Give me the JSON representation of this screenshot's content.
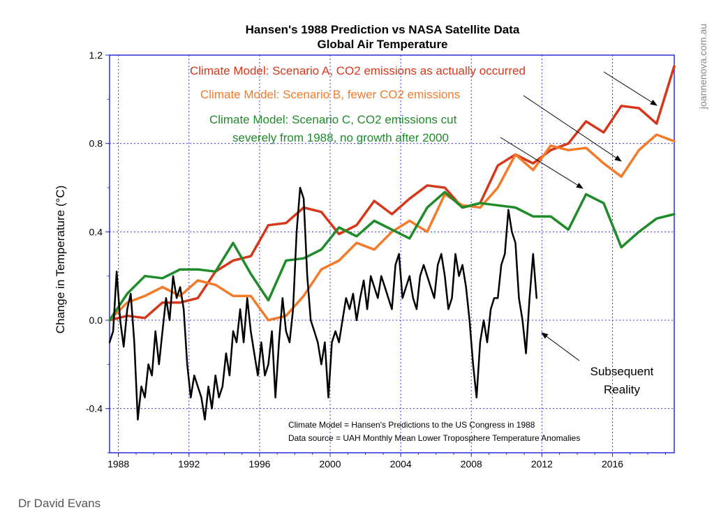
{
  "chart_data": {
    "type": "line",
    "title": "Hansen's 1988 Prediction vs NASA Satellite Data",
    "subtitle": "Global Air Temperature",
    "ylabel": "Change in Temperature (°C)",
    "xlabel": "",
    "xlim": [
      1987.5,
      2019.5
    ],
    "ylim": [
      -0.6,
      1.2
    ],
    "grid": true,
    "x_ticks": [
      1988,
      1992,
      1996,
      2000,
      2004,
      2008,
      2012,
      2016
    ],
    "x_tick_labels": [
      "1988",
      "1992",
      "1996",
      "2000",
      "2004",
      "2008",
      "2012",
      "2016"
    ],
    "y_ticks": [
      -0.4,
      0.0,
      0.4,
      0.8,
      1.2
    ],
    "y_tick_labels": [
      "-0.4",
      "0.0",
      "0.4",
      "0.8",
      "1.2"
    ],
    "series": [
      {
        "name": "Scenario A",
        "color": "#d5371b",
        "x": [
          1987.5,
          1988.5,
          1989.5,
          1990.5,
          1991.5,
          1992.5,
          1993.5,
          1994.5,
          1995.5,
          1996.5,
          1997.5,
          1998.5,
          1999.5,
          2000.5,
          2001.5,
          2002.5,
          2003.5,
          2004.5,
          2005.5,
          2006.5,
          2007.5,
          2008.5,
          2009.5,
          2010.5,
          2011.5,
          2012.5,
          2013.5,
          2014.5,
          2015.5,
          2016.5,
          2017.5,
          2018.5,
          2019.5
        ],
        "values": [
          0.0,
          0.02,
          0.01,
          0.08,
          0.08,
          0.1,
          0.22,
          0.27,
          0.29,
          0.43,
          0.44,
          0.51,
          0.49,
          0.39,
          0.43,
          0.54,
          0.48,
          0.55,
          0.61,
          0.6,
          0.51,
          0.53,
          0.7,
          0.75,
          0.71,
          0.77,
          0.8,
          0.9,
          0.85,
          0.97,
          0.96,
          0.89,
          1.15
        ]
      },
      {
        "name": "Scenario B",
        "color": "#f47a2a",
        "x": [
          1987.5,
          1988.5,
          1989.5,
          1990.5,
          1991.5,
          1992.5,
          1993.5,
          1994.5,
          1995.5,
          1996.5,
          1997.5,
          1998.5,
          1999.5,
          2000.5,
          2001.5,
          2002.5,
          2003.5,
          2004.5,
          2005.5,
          2006.5,
          2007.5,
          2008.5,
          2009.5,
          2010.5,
          2011.5,
          2012.5,
          2013.5,
          2014.5,
          2015.5,
          2016.5,
          2017.5,
          2018.5,
          2019.5
        ],
        "values": [
          0.0,
          0.08,
          0.11,
          0.15,
          0.11,
          0.18,
          0.16,
          0.11,
          0.11,
          0.0,
          0.02,
          0.11,
          0.23,
          0.27,
          0.35,
          0.32,
          0.4,
          0.45,
          0.4,
          0.57,
          0.52,
          0.51,
          0.6,
          0.75,
          0.68,
          0.79,
          0.77,
          0.78,
          0.71,
          0.65,
          0.77,
          0.84,
          0.81
        ]
      },
      {
        "name": "Scenario C",
        "color": "#1f8b2a",
        "x": [
          1987.5,
          1988.5,
          1989.5,
          1990.5,
          1991.5,
          1992.5,
          1993.5,
          1994.5,
          1995.5,
          1996.5,
          1997.5,
          1998.5,
          1999.5,
          2000.5,
          2001.5,
          2002.5,
          2003.5,
          2004.5,
          2005.5,
          2006.5,
          2007.5,
          2008.5,
          2009.5,
          2010.5,
          2011.5,
          2012.5,
          2013.5,
          2014.5,
          2015.5,
          2016.5,
          2017.5,
          2018.5,
          2019.5
        ],
        "values": [
          0.0,
          0.12,
          0.2,
          0.19,
          0.23,
          0.23,
          0.22,
          0.35,
          0.21,
          0.09,
          0.27,
          0.28,
          0.32,
          0.42,
          0.38,
          0.45,
          0.41,
          0.37,
          0.51,
          0.58,
          0.51,
          0.53,
          0.52,
          0.51,
          0.47,
          0.47,
          0.41,
          0.57,
          0.53,
          0.33,
          0.4,
          0.46,
          0.48
        ]
      },
      {
        "name": "Subsequent Reality",
        "color": "#000000",
        "x": [
          1987.5,
          1987.7,
          1987.9,
          1988.1,
          1988.3,
          1988.5,
          1988.7,
          1988.9,
          1989.1,
          1989.3,
          1989.5,
          1989.7,
          1989.9,
          1990.1,
          1990.3,
          1990.5,
          1990.7,
          1990.9,
          1991.1,
          1991.3,
          1991.5,
          1991.7,
          1991.9,
          1992.1,
          1992.3,
          1992.5,
          1992.7,
          1992.9,
          1993.1,
          1993.3,
          1993.5,
          1993.7,
          1993.9,
          1994.1,
          1994.3,
          1994.5,
          1994.7,
          1994.9,
          1995.1,
          1995.3,
          1995.5,
          1995.7,
          1995.9,
          1996.1,
          1996.3,
          1996.5,
          1996.7,
          1996.9,
          1997.1,
          1997.3,
          1997.5,
          1997.7,
          1997.9,
          1998.1,
          1998.3,
          1998.5,
          1998.7,
          1998.9,
          1999.1,
          1999.3,
          1999.5,
          1999.7,
          1999.9,
          2000.1,
          2000.3,
          2000.5,
          2000.7,
          2000.9,
          2001.1,
          2001.3,
          2001.5,
          2001.7,
          2001.9,
          2002.1,
          2002.3,
          2002.5,
          2002.7,
          2002.9,
          2003.1,
          2003.3,
          2003.5,
          2003.7,
          2003.9,
          2004.1,
          2004.3,
          2004.5,
          2004.7,
          2004.9,
          2005.1,
          2005.3,
          2005.5,
          2005.7,
          2005.9,
          2006.1,
          2006.3,
          2006.5,
          2006.7,
          2006.9,
          2007.1,
          2007.3,
          2007.5,
          2007.7,
          2007.9,
          2008.1,
          2008.3,
          2008.5,
          2008.7,
          2008.9,
          2009.1,
          2009.3,
          2009.5,
          2009.7,
          2009.9,
          2010.1,
          2010.3,
          2010.5,
          2010.7,
          2010.9,
          2011.1,
          2011.3,
          2011.5,
          2011.7
        ],
        "values": [
          -0.1,
          -0.05,
          0.22,
          0.0,
          -0.12,
          0.05,
          0.12,
          -0.1,
          -0.45,
          -0.3,
          -0.35,
          -0.2,
          -0.25,
          -0.05,
          -0.2,
          -0.05,
          0.1,
          0.0,
          0.2,
          0.1,
          0.15,
          0.05,
          -0.2,
          -0.35,
          -0.25,
          -0.3,
          -0.35,
          -0.45,
          -0.3,
          -0.4,
          -0.25,
          -0.35,
          -0.3,
          -0.15,
          -0.25,
          -0.05,
          -0.1,
          0.05,
          -0.1,
          0.1,
          -0.05,
          -0.15,
          -0.25,
          -0.1,
          -0.25,
          -0.2,
          -0.05,
          -0.35,
          -0.1,
          0.1,
          -0.05,
          -0.1,
          0.05,
          0.4,
          0.6,
          0.55,
          0.2,
          0.0,
          -0.05,
          -0.1,
          -0.2,
          -0.1,
          -0.35,
          -0.1,
          -0.05,
          -0.1,
          0.0,
          0.1,
          0.05,
          0.12,
          0.0,
          0.1,
          0.18,
          0.05,
          0.2,
          0.15,
          0.1,
          0.2,
          0.15,
          0.1,
          0.05,
          0.25,
          0.3,
          0.1,
          0.15,
          0.2,
          0.1,
          0.05,
          0.2,
          0.25,
          0.2,
          0.15,
          0.1,
          0.25,
          0.3,
          0.2,
          0.05,
          0.1,
          0.3,
          0.2,
          0.25,
          0.15,
          0.0,
          -0.2,
          -0.35,
          -0.1,
          0.0,
          -0.1,
          0.05,
          0.1,
          0.1,
          0.25,
          0.3,
          0.5,
          0.4,
          0.35,
          0.1,
          0.0,
          -0.15,
          0.1,
          0.3,
          0.1
        ]
      }
    ],
    "annotations": [
      "Climate Model: Scenario A, CO2 emissions as actually occurred",
      "Climate Model: Scenario B, fewer CO2 emissions",
      "Climate Model: Scenario C, CO2 emissions cut",
      "severely from 1988, no growth after 2000",
      "Subsequent",
      "Reality"
    ],
    "notes": [
      "Climate Model = Hansen's Predictions to the US Congress in 1988",
      "Data source = UAH Monthly Mean Lower Troposphere Temperature Anomalies"
    ]
  },
  "credit": "Dr David Evans",
  "watermark": "joannenova.com.au"
}
